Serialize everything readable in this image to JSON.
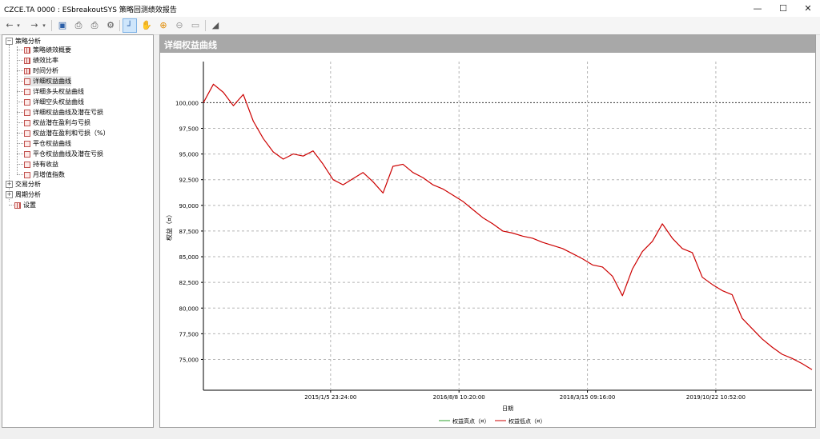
{
  "window": {
    "title": "CZCE.TA 0000 : ESbreakoutSYS 策略回测绩效报告"
  },
  "window_controls": {
    "minimize": "—",
    "maximize": "☐",
    "close": "✕"
  },
  "toolbar": {
    "icons": [
      "back-icon",
      "dropdown-icon",
      "forward-icon",
      "dropdown-icon",
      "save-icon",
      "print-preview-icon",
      "print-icon",
      "settings-icon",
      "crosshair-icon",
      "pan-hand-icon",
      "zoom-in-icon",
      "zoom-out-icon",
      "reset-zoom-icon",
      "export-chart-icon"
    ]
  },
  "tree": {
    "groups": [
      {
        "label": "策略分析",
        "expanded": true,
        "items": [
          "策略绩效概要",
          "绩效比率",
          "时间分析",
          "详细权益曲线",
          "详细多头权益曲线",
          "详细空头权益曲线",
          "详细权益曲线及潜在亏损",
          "权益潜在盈利与亏损",
          "权益潜在盈利和亏损（%）",
          "平仓权益曲线",
          "平仓权益曲线及潜在亏损",
          "持有收益",
          "月增值指数"
        ]
      },
      {
        "label": "交易分析",
        "expanded": false,
        "items": []
      },
      {
        "label": "周期分析",
        "expanded": false,
        "items": []
      },
      {
        "label": "设置",
        "expanded": false,
        "items": []
      }
    ],
    "selected": "详细权益曲线"
  },
  "panel": {
    "title": "详细权益曲线"
  },
  "chart_data": {
    "type": "line",
    "xlabel": "日期",
    "ylabel": "权益（¤）",
    "ylim": [
      72000,
      104000
    ],
    "y_ticks": [
      "100,000",
      "97,500",
      "95,000",
      "92,500",
      "90,000",
      "87,500",
      "85,000",
      "82,500",
      "80,000",
      "77,500",
      "75,000"
    ],
    "y_tick_values": [
      100000,
      97500,
      95000,
      92500,
      90000,
      87500,
      85000,
      82500,
      80000,
      77500,
      75000
    ],
    "x_tick_labels": [
      "2015/1/5 23:24:00",
      "2016/8/8 10:20:00",
      "2018/3/15 09:16:00",
      "2019/10/22 10:52:00"
    ],
    "grid": true,
    "reference_line": 100000,
    "legend_position": "bottom",
    "series": [
      {
        "name": "权益高点（¤）",
        "color": "#2ca02c",
        "values": []
      },
      {
        "name": "权益低点（¤）",
        "color": "#cc0000",
        "values": [
          100000,
          101800,
          101000,
          99700,
          100800,
          98200,
          96500,
          95200,
          94500,
          95000,
          94800,
          95300,
          94000,
          92500,
          92000,
          92600,
          93200,
          92300,
          91200,
          93800,
          94000,
          93200,
          92700,
          92000,
          91600,
          91000,
          90400,
          89600,
          88800,
          88200,
          87500,
          87300,
          87000,
          86800,
          86400,
          86100,
          85800,
          85300,
          84800,
          84200,
          84000,
          83100,
          81200,
          83800,
          85500,
          86500,
          88200,
          86800,
          85800,
          85400,
          83000,
          82300,
          81700,
          81300,
          79000,
          78000,
          77000,
          76200,
          75500,
          75100,
          74600,
          74000
        ]
      }
    ]
  }
}
